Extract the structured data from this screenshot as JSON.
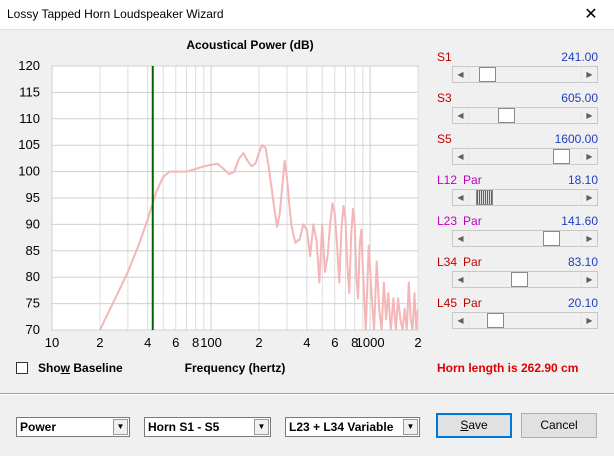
{
  "window": {
    "title": "Lossy Tapped Horn Loudspeaker Wizard",
    "close_glyph": "✕"
  },
  "chart_data": {
    "type": "line",
    "title": "Acoustical Power (dB)",
    "xlabel": "Frequency (hertz)",
    "x_scale": "log",
    "xlim": [
      10,
      2000
    ],
    "ylim": [
      70,
      120
    ],
    "y_ticks": [
      "120",
      "115",
      "110",
      "105",
      "100",
      "95",
      "90",
      "85",
      "80",
      "75",
      "70"
    ],
    "x_ticks": [
      {
        "f": 10,
        "label": "10"
      },
      {
        "f": 20,
        "label": "2"
      },
      {
        "f": 40,
        "label": "4"
      },
      {
        "f": 60,
        "label": "6"
      },
      {
        "f": 80,
        "label": "8"
      },
      {
        "f": 100,
        "label": "100"
      },
      {
        "f": 200,
        "label": "2"
      },
      {
        "f": 400,
        "label": "4"
      },
      {
        "f": 600,
        "label": "6"
      },
      {
        "f": 800,
        "label": "8"
      },
      {
        "f": 1000,
        "label": "1000"
      },
      {
        "f": 2000,
        "label": "2"
      }
    ],
    "marker_frequency": 43,
    "series_color": "#f4b6b6",
    "marker_color": "#006400",
    "series": [
      {
        "x": [
          20,
          25,
          30,
          35,
          40,
          45,
          50,
          55,
          60,
          70,
          80,
          90,
          100,
          110,
          120,
          130,
          140,
          150,
          160,
          170,
          180,
          190,
          200,
          210,
          220,
          230,
          240,
          250,
          260,
          270,
          280,
          290,
          300,
          310,
          320,
          330,
          340,
          350,
          360,
          380,
          400,
          420,
          440,
          460,
          480,
          500,
          520,
          540,
          560,
          580,
          600,
          620,
          640,
          660,
          680,
          700,
          720,
          740,
          760,
          780,
          800,
          820,
          840,
          860,
          880,
          900,
          940,
          980,
          1020,
          1060,
          1100,
          1140,
          1180,
          1220,
          1260,
          1300,
          1350,
          1400,
          1450,
          1500,
          1550,
          1600,
          1650,
          1700,
          1750,
          1800,
          1850,
          1900,
          1950,
          2000
        ],
        "y": [
          70,
          76,
          81,
          86,
          91,
          96,
          99,
          100,
          100,
          100,
          100.5,
          101,
          101.3,
          101.5,
          100.5,
          99.5,
          100,
          102.5,
          103.5,
          102,
          101,
          101.5,
          103.5,
          105,
          104.5,
          101,
          97,
          93,
          89.5,
          92,
          97,
          102,
          99,
          94,
          90,
          88,
          86.5,
          87,
          87,
          90,
          89,
          84,
          90,
          87,
          79,
          90,
          81,
          84,
          90,
          94,
          92,
          86,
          79,
          89,
          93.5,
          91,
          82,
          77,
          88,
          93,
          90,
          80,
          76,
          86,
          89,
          82,
          70,
          86,
          77,
          70,
          83,
          74,
          70,
          79,
          72,
          77,
          70,
          76,
          70,
          76,
          72,
          70,
          74,
          70,
          79,
          72,
          70,
          77,
          70,
          74
        ]
      }
    ]
  },
  "sidebar": [
    {
      "label": "S1",
      "par": "",
      "value": "241.00",
      "pos": 0.1,
      "label_color": "red"
    },
    {
      "label": "S3",
      "par": "",
      "value": "605.00",
      "pos": 0.31,
      "label_color": "red"
    },
    {
      "label": "S5",
      "par": "",
      "value": "1600.00",
      "pos": 0.88,
      "label_color": "red"
    },
    {
      "label": "L12",
      "par": "Par",
      "value": "18.10",
      "pos": 0.07,
      "label_color": "magenta",
      "hatch": true
    },
    {
      "label": "L23",
      "par": "Par",
      "value": "141.60",
      "pos": 0.78,
      "label_color": "magenta"
    },
    {
      "label": "L34",
      "par": "Par",
      "value": "83.10",
      "pos": 0.44,
      "label_color": "red"
    },
    {
      "label": "L45",
      "par": "Par",
      "value": "20.10",
      "pos": 0.19,
      "label_color": "red"
    }
  ],
  "show_baseline": {
    "label_pre": "Sho",
    "label_u": "w",
    "label_post": " Baseline",
    "checked": false
  },
  "horn_length": "Horn length is 262.90 cm",
  "bottom": {
    "combo1": "Power",
    "combo2": "Horn S1 - S5",
    "combo3": "L23 + L34 Variable",
    "combo_arrow": "▼",
    "save_label_u": "S",
    "save_label_rest": "ave",
    "cancel_label": "Cancel"
  },
  "arrows": {
    "left": "◀",
    "right": "▶"
  }
}
